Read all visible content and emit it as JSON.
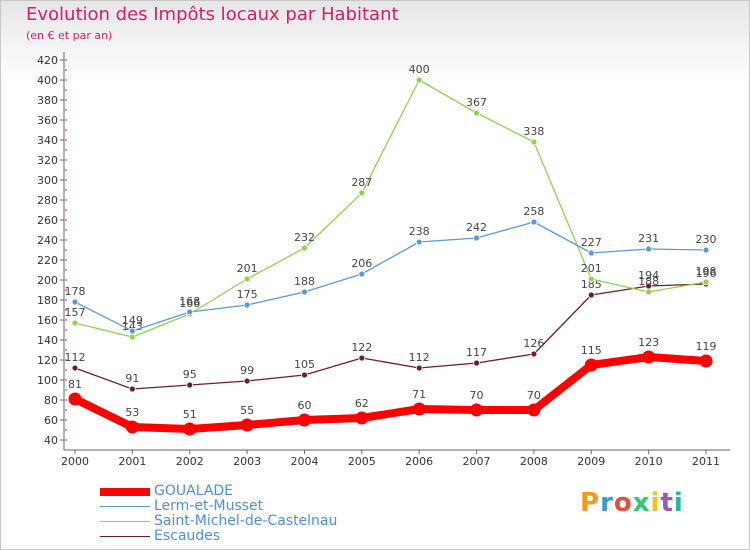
{
  "chart_data": {
    "type": "line",
    "title": "Evolution des Impôts locaux par Habitant",
    "subtitle": "(en € et par an)",
    "x": [
      "2000",
      "2001",
      "2002",
      "2003",
      "2004",
      "2005",
      "2006",
      "2007",
      "2008",
      "2009",
      "2010",
      "2011"
    ],
    "ylim": [
      40,
      420
    ],
    "yticks": [
      40,
      60,
      80,
      100,
      120,
      140,
      160,
      180,
      200,
      220,
      240,
      260,
      280,
      300,
      320,
      340,
      360,
      380,
      400,
      420
    ],
    "grid": false,
    "legend_position": "bottom-left",
    "series": [
      {
        "name": "GOUALADE",
        "color": "#ff0000",
        "values": [
          81,
          53,
          51,
          55,
          60,
          62,
          71,
          70,
          70,
          115,
          123,
          119
        ]
      },
      {
        "name": "Lerm-et-Musset",
        "color": "#5b9bd5",
        "values": [
          178,
          149,
          168,
          175,
          188,
          206,
          238,
          242,
          258,
          227,
          231,
          230
        ]
      },
      {
        "name": "Saint-Michel-de-Castelnau",
        "color": "#92d050",
        "values": [
          157,
          143,
          166,
          201,
          232,
          287,
          400,
          367,
          338,
          201,
          188,
          198
        ]
      },
      {
        "name": "Escaudes",
        "color": "#6b1f2a",
        "values": [
          112,
          91,
          95,
          99,
          105,
          122,
          112,
          117,
          126,
          185,
          194,
          196
        ]
      }
    ]
  },
  "logo": {
    "letters": [
      "P",
      "r",
      "o",
      "x",
      "i",
      "t",
      "i"
    ],
    "colors": [
      "#f39c12",
      "#3498db",
      "#e74c3c",
      "#2ecc71",
      "#f1c40f",
      "#9b59b6",
      "#1abc9c"
    ]
  }
}
